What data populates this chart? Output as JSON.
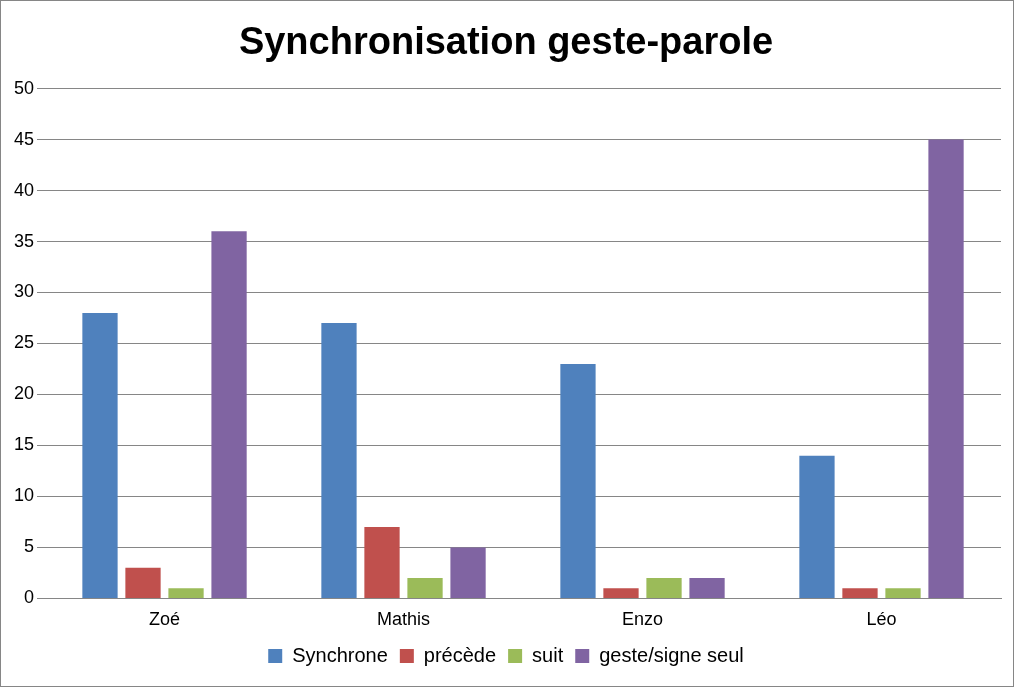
{
  "chart_data": {
    "type": "bar",
    "title": "Synchronisation geste-parole",
    "categories": [
      "Zoé",
      "Mathis",
      "Enzo",
      "Léo"
    ],
    "series": [
      {
        "name": "Synchrone",
        "color": "#4f81bd",
        "values": [
          28,
          27,
          23,
          14
        ]
      },
      {
        "name": "précède",
        "color": "#c0504d",
        "values": [
          3,
          7,
          1,
          1
        ]
      },
      {
        "name": "suit",
        "color": "#9bbb59",
        "values": [
          1,
          2,
          2,
          1
        ]
      },
      {
        "name": "geste/signe seul",
        "color": "#8064a2",
        "values": [
          36,
          5,
          2,
          45
        ]
      }
    ],
    "ylim": [
      0,
      50
    ],
    "yticks": [
      0,
      5,
      10,
      15,
      20,
      25,
      30,
      35,
      40,
      45,
      50
    ],
    "grid": "y",
    "legend": "bottom"
  }
}
